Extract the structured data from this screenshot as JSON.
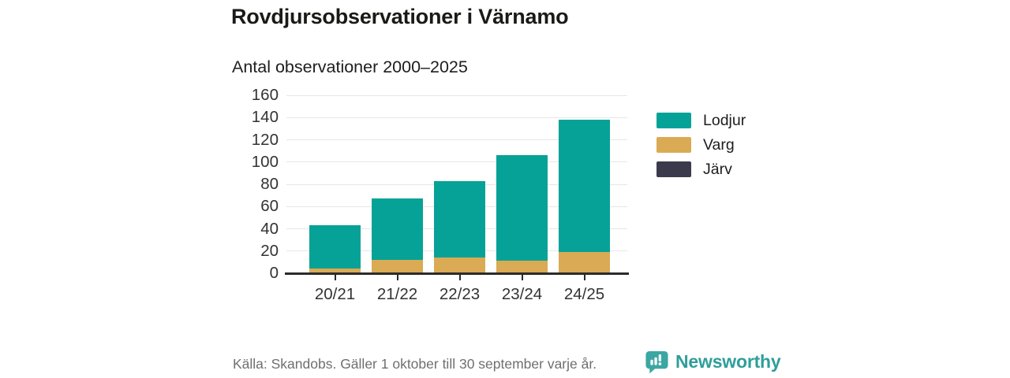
{
  "header": {
    "title": "Rovdjursobservationer i Värnamo",
    "subtitle": "Antal observationer 2000–2025"
  },
  "chart_data": {
    "type": "bar",
    "stacked": true,
    "title": "Rovdjursobservationer i Värnamo",
    "subtitle": "Antal observationer 2000–2025",
    "categories": [
      "20/21",
      "21/22",
      "22/23",
      "23/24",
      "24/25"
    ],
    "series": [
      {
        "name": "Lodjur",
        "color": "#06a297",
        "values": [
          39,
          55,
          69,
          95,
          119
        ]
      },
      {
        "name": "Varg",
        "color": "#daaa54",
        "values": [
          3,
          11,
          13,
          10,
          18
        ]
      },
      {
        "name": "Järv",
        "color": "#3b3a4d",
        "values": [
          1,
          1,
          1,
          1,
          1
        ]
      }
    ],
    "stack_order_bottom_to_top": [
      "Järv",
      "Varg",
      "Lodjur"
    ],
    "totals": [
      43,
      67,
      83,
      106,
      138
    ],
    "xlabel": "",
    "ylabel": "",
    "ylim": [
      0,
      160
    ],
    "ytick_step": 20,
    "yticks": [
      0,
      20,
      40,
      60,
      80,
      100,
      120,
      140,
      160
    ],
    "grid": "horizontal",
    "legend_position": "right"
  },
  "colors": {
    "axis": "#2b2b2b",
    "grid": "#e7e7e7",
    "tick_text": "#333333",
    "accent_teal": "#2f9e9a"
  },
  "footer": {
    "source": "Källa: Skandobs. Gäller 1 oktober till 30 september varje år.",
    "brand": "Newsworthy"
  }
}
